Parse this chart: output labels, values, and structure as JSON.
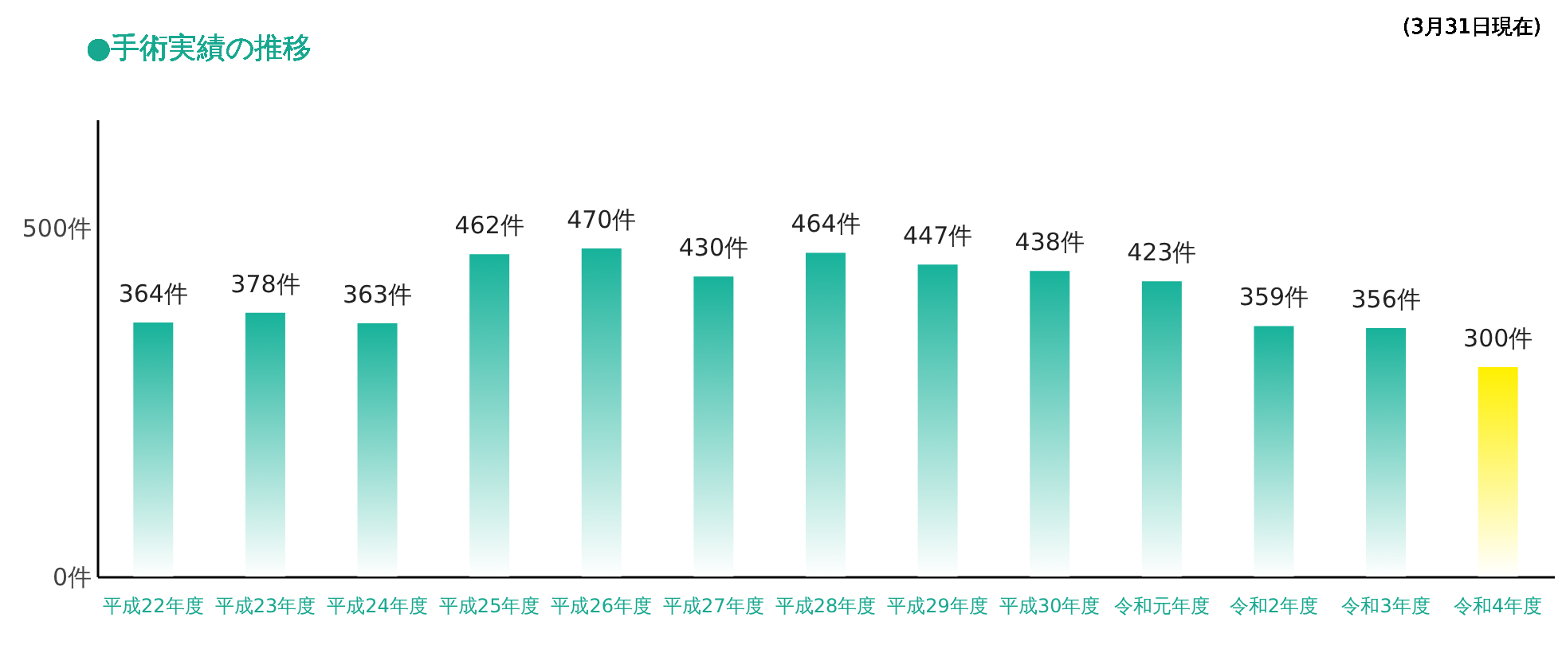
{
  "chart_data": {
    "type": "bar",
    "title": "●手術実績の推移",
    "annotations": [
      "(3月31日現在)"
    ],
    "categories": [
      "平成22年度",
      "平成23年度",
      "平成24年度",
      "平成25年度",
      "平成26年度",
      "平成27年度",
      "平成28年度",
      "平成29年度",
      "平成30年度",
      "令和元年度",
      "令和2年度",
      "令和3年度",
      "令和4年度"
    ],
    "values": [
      364,
      378,
      363,
      462,
      470,
      430,
      464,
      447,
      438,
      423,
      359,
      356,
      300
    ],
    "colors": [
      "#17b29a",
      "#17b29a",
      "#17b29a",
      "#17b29a",
      "#17b29a",
      "#17b29a",
      "#17b29a",
      "#17b29a",
      "#17b29a",
      "#17b29a",
      "#17b29a",
      "#17b29a",
      "#fff000"
    ],
    "value_labels": [
      "364件",
      "378件",
      "363件",
      "462件",
      "470件",
      "430件",
      "464件",
      "447件",
      "438件",
      "423件",
      "359件",
      "356件",
      "300件"
    ],
    "ylim": [
      0,
      655
    ],
    "yticks": [
      {
        "value": 0,
        "label": "0件"
      },
      {
        "value": 500,
        "label": "500件"
      }
    ],
    "grid": false
  }
}
